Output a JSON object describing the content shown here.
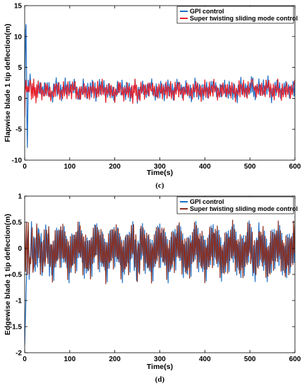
{
  "chart_data": [
    {
      "type": "line",
      "panel_label": "(c)",
      "xlabel": "Time(s)",
      "ylabel": "Flapwise blade 1 tip deflection(m)",
      "xlim": [
        0,
        600
      ],
      "ylim": [
        -10,
        15
      ],
      "xticks": [
        0,
        100,
        200,
        300,
        400,
        500,
        600
      ],
      "yticks": [
        -10,
        -5,
        0,
        5,
        10,
        15
      ],
      "legend_position": "top-right",
      "grid": false,
      "series": [
        {
          "name": "GPI control",
          "color": "#1f6fc5",
          "x": [
            0,
            1,
            2,
            3,
            4,
            5,
            6,
            7,
            8,
            10,
            12,
            15,
            20,
            25,
            30,
            40,
            50,
            60,
            70,
            80,
            90,
            100,
            110,
            120,
            130,
            140,
            150,
            160,
            170,
            180,
            190,
            200,
            210,
            220,
            230,
            240,
            245,
            250,
            260,
            270,
            280,
            290,
            300,
            310,
            320,
            330,
            340,
            350,
            360,
            370,
            380,
            390,
            400,
            410,
            420,
            430,
            440,
            450,
            460,
            470,
            480,
            490,
            500,
            505,
            510,
            520,
            530,
            540,
            550,
            560,
            570,
            580,
            590,
            600
          ],
          "y": [
            -1,
            6,
            11,
            12,
            4,
            -4,
            -8,
            -2,
            3,
            1,
            4,
            0,
            3,
            -1,
            4,
            1,
            3,
            -1,
            4,
            0,
            3,
            2,
            4,
            -1,
            3,
            1,
            3,
            0,
            4,
            1,
            2,
            -1,
            4,
            1,
            2,
            -1,
            5,
            -2,
            3,
            1,
            4,
            0,
            2,
            1,
            3,
            0,
            4,
            1,
            3,
            -1,
            4,
            0,
            2,
            1,
            4,
            0,
            3,
            1,
            2,
            -1,
            4,
            1,
            2,
            5,
            0,
            3,
            2,
            4,
            -1,
            4,
            0,
            3,
            1,
            3
          ]
        },
        {
          "name": "Super twisting sliding mode control",
          "color": "#e8202a",
          "x": [
            0,
            1,
            2,
            3,
            4,
            5,
            6,
            8,
            10,
            12,
            15,
            20,
            25,
            30,
            40,
            50,
            60,
            70,
            80,
            90,
            100,
            110,
            120,
            130,
            140,
            150,
            160,
            170,
            180,
            190,
            200,
            210,
            220,
            230,
            240,
            245,
            250,
            260,
            270,
            280,
            290,
            300,
            310,
            320,
            330,
            340,
            350,
            360,
            370,
            380,
            390,
            400,
            410,
            420,
            430,
            440,
            450,
            460,
            470,
            480,
            490,
            500,
            505,
            510,
            520,
            530,
            540,
            550,
            560,
            570,
            580,
            590,
            600
          ],
          "y": [
            -3,
            1,
            2,
            3,
            1,
            2,
            1,
            2,
            1,
            3,
            0,
            3,
            -1,
            3,
            0,
            2,
            -1,
            3,
            0,
            2,
            1,
            3,
            -1,
            2,
            0,
            2,
            1,
            3,
            0,
            2,
            -1,
            3,
            0,
            2,
            -1,
            4,
            -1,
            2,
            1,
            3,
            0,
            2,
            1,
            2,
            0,
            3,
            0,
            2,
            0,
            3,
            0,
            2,
            1,
            3,
            0,
            2,
            1,
            2,
            0,
            3,
            1,
            2,
            7,
            1,
            2,
            1,
            4,
            0,
            3,
            0,
            2,
            1,
            3
          ]
        }
      ]
    },
    {
      "type": "line",
      "panel_label": "(d)",
      "xlabel": "Time(s)",
      "ylabel": "Edgewise blade 1 tip deflection(m)",
      "xlim": [
        0,
        600
      ],
      "ylim": [
        -2,
        1
      ],
      "xticks": [
        0,
        100,
        200,
        300,
        400,
        500,
        600
      ],
      "yticks": [
        -2,
        -1.5,
        -1,
        -0.5,
        0,
        0.5,
        1
      ],
      "legend_position": "top-right",
      "grid": false,
      "series": [
        {
          "name": "GPI control",
          "color": "#1f6fc5",
          "x": [
            0,
            1,
            2,
            3,
            4,
            5,
            6,
            8,
            10,
            15,
            20,
            30,
            40,
            50,
            60,
            80,
            100,
            120,
            140,
            160,
            180,
            200,
            220,
            240,
            250,
            260,
            280,
            300,
            320,
            340,
            360,
            380,
            400,
            420,
            440,
            460,
            480,
            500,
            510,
            520,
            540,
            560,
            580,
            600
          ],
          "y": [
            -1.85,
            -1.5,
            -1.2,
            -0.9,
            -0.6,
            -0.3,
            0.1,
            0.35,
            -0.6,
            0.45,
            -0.55,
            0.5,
            -0.55,
            0.45,
            -0.6,
            0.45,
            -0.55,
            0.4,
            -0.6,
            0.45,
            -0.55,
            0.4,
            -0.6,
            0.45,
            -0.7,
            0.45,
            -0.6,
            0.45,
            -0.55,
            0.45,
            -0.6,
            0.4,
            -0.55,
            0.45,
            -0.6,
            0.4,
            -0.55,
            0.45,
            -0.75,
            0.45,
            -0.6,
            0.4,
            -0.55,
            0.45
          ]
        },
        {
          "name": "Super twisting sliding mode control",
          "color": "#8b2e1f",
          "x": [
            0,
            2,
            4,
            6,
            8,
            10,
            15,
            20,
            30,
            40,
            50,
            60,
            80,
            100,
            120,
            140,
            160,
            180,
            200,
            220,
            240,
            250,
            260,
            280,
            300,
            320,
            340,
            360,
            380,
            400,
            420,
            440,
            460,
            480,
            500,
            510,
            520,
            540,
            560,
            580,
            600
          ],
          "y": [
            0.5,
            -0.45,
            0.5,
            -0.5,
            0.5,
            -0.5,
            0.5,
            -0.5,
            0.5,
            -0.5,
            0.5,
            -0.5,
            0.45,
            -0.5,
            0.45,
            -0.55,
            0.45,
            -0.5,
            0.45,
            -0.55,
            0.45,
            -0.6,
            0.45,
            -0.55,
            0.45,
            -0.5,
            0.45,
            -0.55,
            0.45,
            -0.5,
            0.45,
            -0.55,
            0.45,
            -0.5,
            0.45,
            -0.7,
            0.5,
            -0.55,
            0.45,
            -0.5,
            0.45
          ]
        }
      ]
    }
  ]
}
